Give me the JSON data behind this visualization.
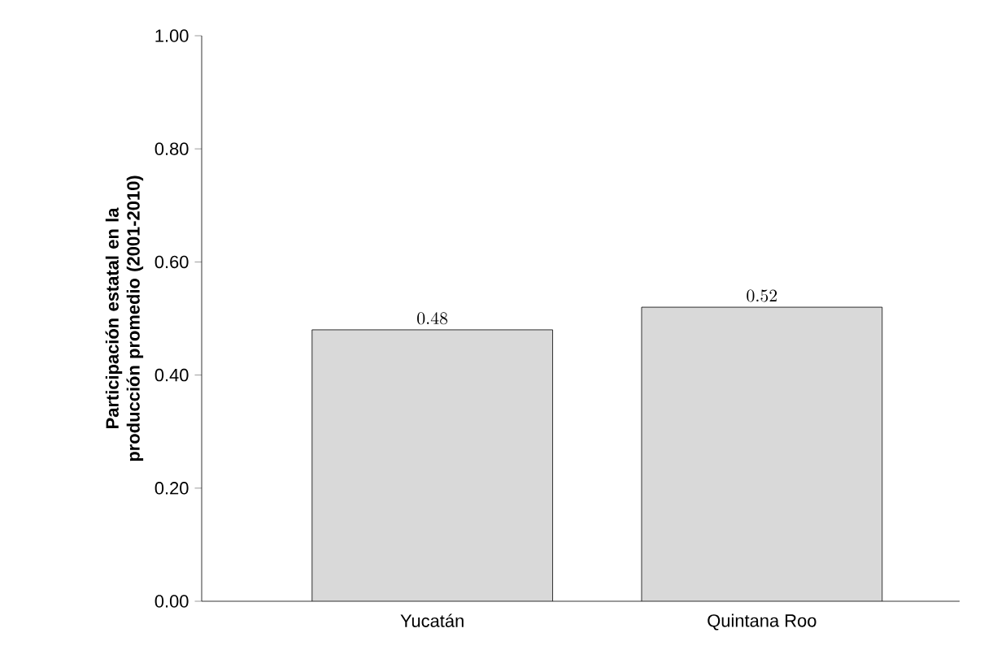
{
  "chart_data": {
    "type": "bar",
    "ylabel": "Participación estatal en la producción promedio (2001-2010)",
    "categories": [
      "Yucatán",
      "Quintana Roo"
    ],
    "values": [
      0.48,
      0.52
    ],
    "color": "#d9d9d9",
    "ylim": [
      0,
      1
    ],
    "yticks": [
      {
        "value": 0,
        "label": "0.00"
      },
      {
        "value": 0.2,
        "label": "0.20"
      },
      {
        "value": 0.4,
        "label": "0.40"
      },
      {
        "value": 0.6,
        "label": "0.60"
      },
      {
        "value": 0.8,
        "label": "0.80"
      },
      {
        "value": 1,
        "label": "1.00"
      }
    ],
    "data_labels": true
  }
}
